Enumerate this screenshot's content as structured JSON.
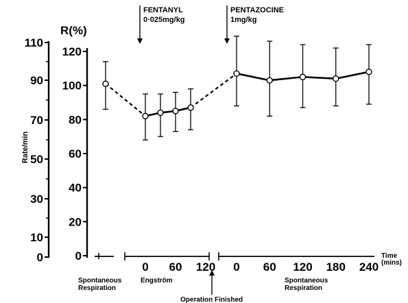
{
  "chart_data": {
    "type": "line",
    "title": "",
    "rate_axis": {
      "label": "Rate/min",
      "ticks": [
        "110",
        "90",
        "70",
        "50",
        "30",
        "10",
        "0"
      ]
    },
    "r_axis": {
      "label": "R(%)",
      "range": [
        0,
        120
      ],
      "ticks": [
        "120",
        "100",
        "80",
        "60",
        "40",
        "20",
        "0"
      ]
    },
    "x_axis": {
      "label": "Time\n(mins)",
      "segments": [
        {
          "name": "Spontaneous\nRespiration",
          "ticks": []
        },
        {
          "name": "Engström",
          "ticks": [
            "0",
            "60",
            "120"
          ]
        },
        {
          "name": "Spontaneous\nRespiration",
          "ticks": [
            "0",
            "60",
            "120",
            "180",
            "240"
          ]
        }
      ]
    },
    "annotations": [
      {
        "text": "FENTANYL\n0·025mg/kg",
        "type": "arrow-down"
      },
      {
        "text": "PENTAZOCINE\n1mg/kg",
        "type": "arrow-down"
      },
      {
        "text": "Operation Finished",
        "type": "arrow-up"
      }
    ],
    "series": [
      {
        "points": [
          {
            "phase": "baseline",
            "t": 0,
            "y": 101,
            "err_low": 86,
            "err_high": 114
          },
          {
            "phase": "engstrom",
            "t": 0,
            "y": 82,
            "err_low": 68,
            "err_high": 95
          },
          {
            "phase": "engstrom",
            "t": 30,
            "y": 84,
            "err_low": 70,
            "err_high": 95
          },
          {
            "phase": "engstrom",
            "t": 60,
            "y": 85,
            "err_low": 73,
            "err_high": 96
          },
          {
            "phase": "engstrom",
            "t": 90,
            "y": 87,
            "err_low": 74,
            "err_high": 98
          },
          {
            "phase": "post",
            "t": 0,
            "y": 107,
            "err_low": 88,
            "err_high": 129
          },
          {
            "phase": "post",
            "t": 60,
            "y": 103,
            "err_low": 82,
            "err_high": 126
          },
          {
            "phase": "post",
            "t": 120,
            "y": 105,
            "err_low": 87,
            "err_high": 124
          },
          {
            "phase": "post",
            "t": 180,
            "y": 104,
            "err_low": 88,
            "err_high": 122
          },
          {
            "phase": "post",
            "t": 240,
            "y": 108,
            "err_low": 89,
            "err_high": 124
          }
        ]
      }
    ]
  }
}
